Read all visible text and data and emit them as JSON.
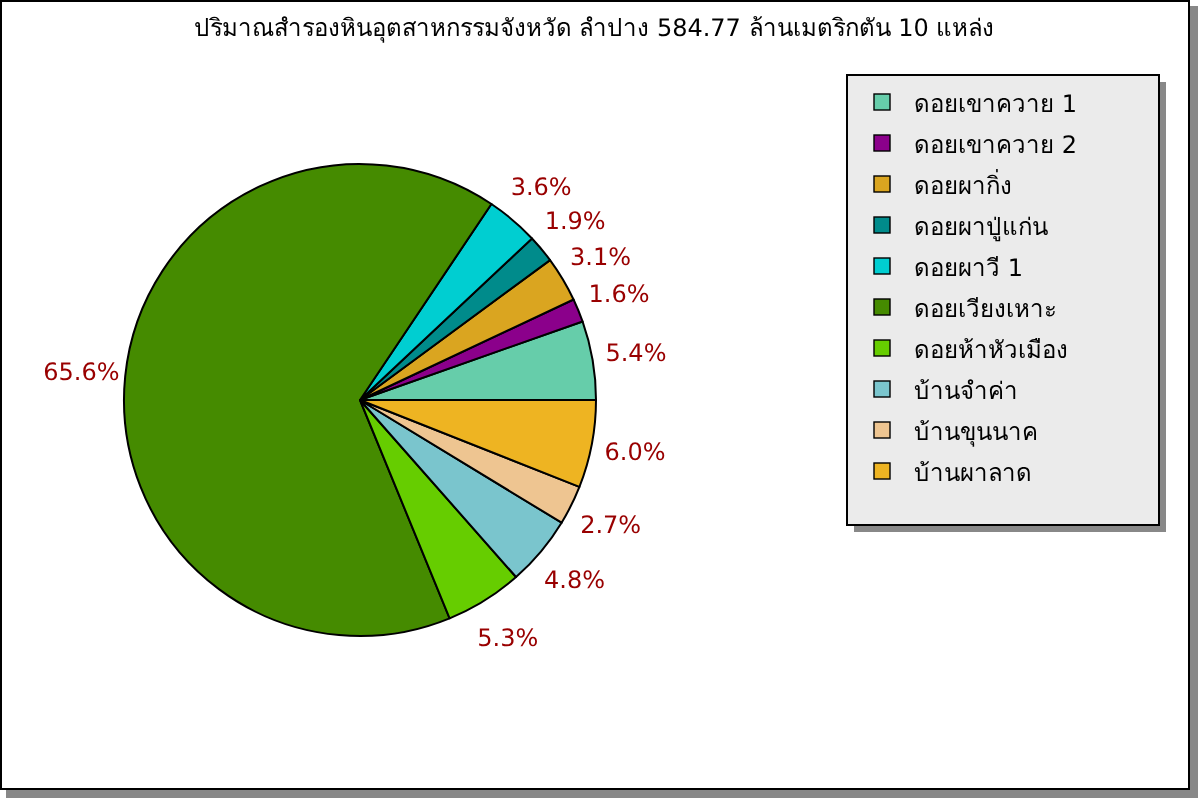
{
  "chart_data": {
    "type": "pie",
    "title": "ปริมาณสำรองหินอุตสาหกรรมจังหวัด ลำปาง 584.77 ล้านเมตริกตัน 10 แหล่ง",
    "categories": [
      "ดอยเขาควาย 1",
      "ดอยเขาควาย 2",
      "ดอยผากิ่ง",
      "ดอยผาปู่แก่น",
      "ดอยผาวี 1",
      "ดอยเวียงเหาะ",
      "ดอยห้าหัวเมือง",
      "บ้านจำค่า",
      "บ้านขุนนาค",
      "บ้านผาลาด"
    ],
    "values": [
      5.4,
      1.6,
      3.1,
      1.9,
      3.6,
      65.6,
      5.3,
      4.8,
      2.7,
      6.0
    ],
    "colors": [
      "#66cdaa",
      "#8b008b",
      "#daa520",
      "#008b8b",
      "#00ced1",
      "#458b00",
      "#66cd00",
      "#7ac5cd",
      "#eec591",
      "#eeb422"
    ],
    "value_labels": [
      "5.4%",
      "1.6%",
      "3.1%",
      "1.9%",
      "3.6%",
      "65.6%",
      "5.3%",
      "4.8%",
      "2.7%",
      "6.0%"
    ],
    "legend": "right"
  }
}
